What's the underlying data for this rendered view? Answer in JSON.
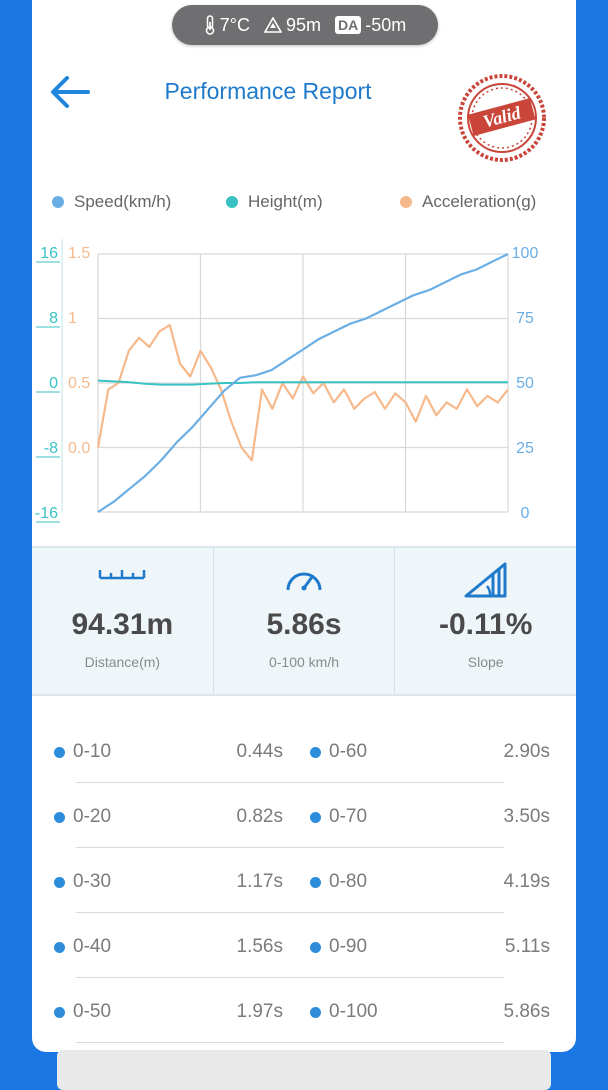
{
  "status_bar": {
    "temperature": "7°C",
    "altitude": "95m",
    "da_label": "DA",
    "da_value": "-50m"
  },
  "header": {
    "title": "Performance Report",
    "stamp_text": "Valid"
  },
  "legend": [
    {
      "label": "Speed(km/h)",
      "color": "#6aaee6"
    },
    {
      "label": "Height(m)",
      "color": "#39c2c4"
    },
    {
      "label": "Acceleration(g)",
      "color": "#f6b98c"
    }
  ],
  "colors": {
    "speed": "#6aaee6",
    "height": "#39c2c4",
    "accel": "#f6b98c",
    "accent": "#1f7acb",
    "dot": "#2e8ddb"
  },
  "chart_data": {
    "type": "line",
    "title": "",
    "grid": true,
    "axes": {
      "height_left": {
        "ticks": [
          "16",
          "8",
          "0",
          "-8",
          "-16"
        ],
        "range": [
          -16,
          16
        ],
        "color": "#39c2c4"
      },
      "accel_left": {
        "ticks": [
          "1.5",
          "1",
          "0.5",
          "0.0"
        ],
        "range": [
          -0.5,
          1.5
        ],
        "color": "#f6b98c"
      },
      "speed_right": {
        "ticks": [
          "100",
          "75",
          "50",
          "25",
          "0"
        ],
        "range": [
          0,
          100
        ],
        "color": "#6aaee6"
      }
    },
    "series": [
      {
        "name": "Speed(km/h)",
        "axis": "speed_right",
        "values": [
          0,
          4,
          9,
          14,
          20,
          27,
          33,
          40,
          47,
          52,
          53,
          55,
          59,
          63,
          67,
          70,
          73,
          75,
          78,
          81,
          84,
          86,
          89,
          92,
          94,
          97,
          100
        ]
      },
      {
        "name": "Height(m)",
        "axis": "height_left",
        "values": [
          0.3,
          0.2,
          0.1,
          -0.1,
          -0.2,
          -0.2,
          -0.2,
          -0.1,
          0,
          0,
          0.1,
          0.1,
          0.1,
          0.1,
          0.1,
          0.1,
          0.1,
          0.1,
          0.1,
          0.1,
          0.1,
          0.1,
          0.1,
          0.1,
          0.1,
          0.1,
          0.1
        ]
      },
      {
        "name": "Acceleration(g)",
        "axis": "accel_left",
        "values": [
          0.0,
          0.45,
          0.5,
          0.75,
          0.85,
          0.78,
          0.9,
          0.95,
          0.65,
          0.55,
          0.75,
          0.62,
          0.45,
          0.2,
          0.0,
          -0.1,
          0.45,
          0.3,
          0.5,
          0.38,
          0.55,
          0.42,
          0.5,
          0.35,
          0.45,
          0.3,
          0.38,
          0.43,
          0.3,
          0.42,
          0.35,
          0.2,
          0.4,
          0.25,
          0.35,
          0.3,
          0.45,
          0.32,
          0.4,
          0.35,
          0.45
        ]
      }
    ]
  },
  "stats": [
    {
      "icon": "ruler-icon",
      "value": "94.31m",
      "label": "Distance(m)"
    },
    {
      "icon": "speedometer-icon",
      "value": "5.86s",
      "label": "0-100 km/h"
    },
    {
      "icon": "slope-icon",
      "value": "-0.11%",
      "label": "Slope"
    }
  ],
  "splits_left": [
    {
      "label": "0-10",
      "value": "0.44s"
    },
    {
      "label": "0-20",
      "value": "0.82s"
    },
    {
      "label": "0-30",
      "value": "1.17s"
    },
    {
      "label": "0-40",
      "value": "1.56s"
    },
    {
      "label": "0-50",
      "value": "1.97s"
    }
  ],
  "splits_right": [
    {
      "label": "0-60",
      "value": "2.90s"
    },
    {
      "label": "0-70",
      "value": "3.50s"
    },
    {
      "label": "0-80",
      "value": "4.19s"
    },
    {
      "label": "0-90",
      "value": "5.11s"
    },
    {
      "label": "0-100",
      "value": "5.86s"
    }
  ]
}
